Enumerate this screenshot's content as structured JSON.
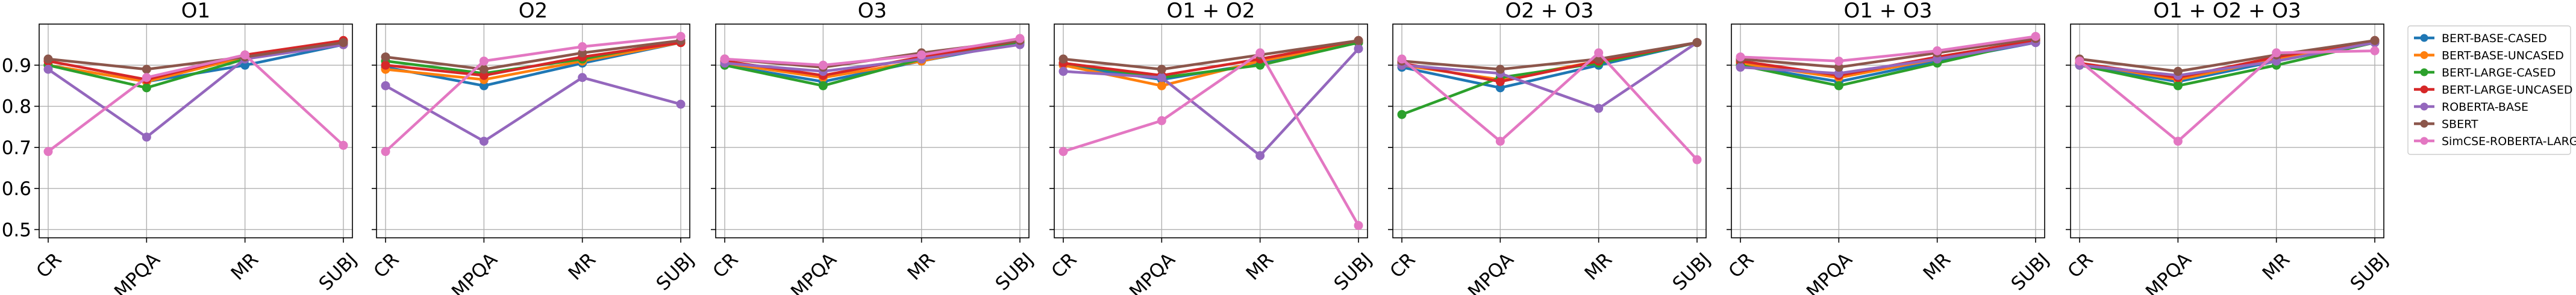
{
  "chart_data": [
    {
      "type": "line",
      "title": "O1",
      "categories": [
        "CR",
        "MPQA",
        "MR",
        "SUBJ"
      ],
      "ylim": [
        0.48,
        1.0
      ],
      "yticks": [
        0.5,
        0.6,
        0.7,
        0.8,
        0.9
      ],
      "ytick_labels": [
        "0.5",
        "0.6",
        "0.7",
        "0.8",
        "0.9"
      ],
      "grid": true,
      "series": [
        {
          "name": "BERT-BASE-CASED",
          "values": [
            0.9,
            0.86,
            0.9,
            0.95
          ]
        },
        {
          "name": "BERT-BASE-UNCASED",
          "values": [
            0.9,
            0.86,
            0.92,
            0.95
          ]
        },
        {
          "name": "BERT-LARGE-CASED",
          "values": [
            0.9,
            0.845,
            0.915,
            0.955
          ]
        },
        {
          "name": "BERT-LARGE-UNCASED",
          "values": [
            0.91,
            0.865,
            0.925,
            0.96
          ]
        },
        {
          "name": "ROBERTA-BASE",
          "values": [
            0.89,
            0.725,
            0.915,
            0.95
          ]
        },
        {
          "name": "SBERT",
          "values": [
            0.915,
            0.89,
            0.92,
            0.955
          ]
        },
        {
          "name": "SimCSE-ROBERTA-LARGE",
          "values": [
            0.69,
            0.87,
            0.925,
            0.705
          ]
        }
      ]
    },
    {
      "type": "line",
      "title": "O2",
      "categories": [
        "CR",
        "MPQA",
        "MR",
        "SUBJ"
      ],
      "ylim": [
        0.48,
        1.0
      ],
      "yticks": [
        0.5,
        0.6,
        0.7,
        0.8,
        0.9
      ],
      "grid": true,
      "series": [
        {
          "name": "BERT-BASE-CASED",
          "values": [
            0.895,
            0.85,
            0.905,
            0.955
          ]
        },
        {
          "name": "BERT-BASE-UNCASED",
          "values": [
            0.89,
            0.865,
            0.91,
            0.955
          ]
        },
        {
          "name": "BERT-LARGE-CASED",
          "values": [
            0.91,
            0.88,
            0.915,
            0.96
          ]
        },
        {
          "name": "BERT-LARGE-UNCASED",
          "values": [
            0.9,
            0.875,
            0.92,
            0.955
          ]
        },
        {
          "name": "ROBERTA-BASE",
          "values": [
            0.85,
            0.715,
            0.87,
            0.805
          ]
        },
        {
          "name": "SBERT",
          "values": [
            0.92,
            0.89,
            0.93,
            0.96
          ]
        },
        {
          "name": "SimCSE-ROBERTA-LARGE",
          "values": [
            0.69,
            0.91,
            0.945,
            0.97
          ]
        }
      ]
    },
    {
      "type": "line",
      "title": "O3",
      "categories": [
        "CR",
        "MPQA",
        "MR",
        "SUBJ"
      ],
      "ylim": [
        0.48,
        1.0
      ],
      "yticks": [
        0.5,
        0.6,
        0.7,
        0.8,
        0.9
      ],
      "grid": true,
      "series": [
        {
          "name": "BERT-BASE-CASED",
          "values": [
            0.9,
            0.86,
            0.91,
            0.955
          ]
        },
        {
          "name": "BERT-BASE-UNCASED",
          "values": [
            0.905,
            0.87,
            0.91,
            0.96
          ]
        },
        {
          "name": "BERT-LARGE-CASED",
          "values": [
            0.9,
            0.85,
            0.915,
            0.955
          ]
        },
        {
          "name": "BERT-LARGE-UNCASED",
          "values": [
            0.91,
            0.875,
            0.92,
            0.96
          ]
        },
        {
          "name": "ROBERTA-BASE",
          "values": [
            0.905,
            0.885,
            0.915,
            0.95
          ]
        },
        {
          "name": "SBERT",
          "values": [
            0.915,
            0.895,
            0.93,
            0.96
          ]
        },
        {
          "name": "SimCSE-ROBERTA-LARGE",
          "values": [
            0.915,
            0.9,
            0.925,
            0.965
          ]
        }
      ]
    },
    {
      "type": "line",
      "title": "O1 + O2",
      "categories": [
        "CR",
        "MPQA",
        "MR",
        "SUBJ"
      ],
      "ylim": [
        0.48,
        1.0
      ],
      "yticks": [
        0.5,
        0.6,
        0.7,
        0.8,
        0.9
      ],
      "grid": true,
      "series": [
        {
          "name": "BERT-BASE-CASED",
          "values": [
            0.9,
            0.865,
            0.905,
            0.955
          ]
        },
        {
          "name": "BERT-BASE-UNCASED",
          "values": [
            0.9,
            0.85,
            0.91,
            0.955
          ]
        },
        {
          "name": "BERT-LARGE-CASED",
          "values": [
            0.905,
            0.87,
            0.9,
            0.955
          ]
        },
        {
          "name": "BERT-LARGE-UNCASED",
          "values": [
            0.905,
            0.875,
            0.915,
            0.96
          ]
        },
        {
          "name": "ROBERTA-BASE",
          "values": [
            0.885,
            0.87,
            0.68,
            0.94
          ]
        },
        {
          "name": "SBERT",
          "values": [
            0.915,
            0.89,
            0.925,
            0.96
          ]
        },
        {
          "name": "SimCSE-ROBERTA-LARGE",
          "values": [
            0.69,
            0.765,
            0.93,
            0.51
          ]
        }
      ]
    },
    {
      "type": "line",
      "title": "O2 + O3",
      "categories": [
        "CR",
        "MPQA",
        "MR",
        "SUBJ"
      ],
      "ylim": [
        0.48,
        1.0
      ],
      "yticks": [
        0.5,
        0.6,
        0.7,
        0.8,
        0.9
      ],
      "grid": true,
      "series": [
        {
          "name": "BERT-BASE-CASED",
          "values": [
            0.895,
            0.845,
            0.9,
            0.955
          ]
        },
        {
          "name": "BERT-BASE-UNCASED",
          "values": [
            0.9,
            0.865,
            0.91,
            0.955
          ]
        },
        {
          "name": "BERT-LARGE-CASED",
          "values": [
            0.78,
            0.87,
            0.905,
            0.955
          ]
        },
        {
          "name": "BERT-LARGE-UNCASED",
          "values": [
            0.905,
            0.86,
            0.91,
            0.955
          ]
        },
        {
          "name": "ROBERTA-BASE",
          "values": [
            0.9,
            0.88,
            0.795,
            0.955
          ]
        },
        {
          "name": "SBERT",
          "values": [
            0.91,
            0.89,
            0.915,
            0.955
          ]
        },
        {
          "name": "SimCSE-ROBERTA-LARGE",
          "values": [
            0.915,
            0.715,
            0.93,
            0.67
          ]
        }
      ]
    },
    {
      "type": "line",
      "title": "O1 + O3",
      "categories": [
        "CR",
        "MPQA",
        "MR",
        "SUBJ"
      ],
      "ylim": [
        0.48,
        1.0
      ],
      "yticks": [
        0.5,
        0.6,
        0.7,
        0.8,
        0.9
      ],
      "grid": true,
      "series": [
        {
          "name": "BERT-BASE-CASED",
          "values": [
            0.9,
            0.86,
            0.91,
            0.955
          ]
        },
        {
          "name": "BERT-BASE-UNCASED",
          "values": [
            0.905,
            0.87,
            0.915,
            0.96
          ]
        },
        {
          "name": "BERT-LARGE-CASED",
          "values": [
            0.9,
            0.85,
            0.905,
            0.96
          ]
        },
        {
          "name": "BERT-LARGE-UNCASED",
          "values": [
            0.91,
            0.875,
            0.92,
            0.96
          ]
        },
        {
          "name": "ROBERTA-BASE",
          "values": [
            0.895,
            0.88,
            0.915,
            0.955
          ]
        },
        {
          "name": "SBERT",
          "values": [
            0.915,
            0.895,
            0.93,
            0.965
          ]
        },
        {
          "name": "SimCSE-ROBERTA-LARGE",
          "values": [
            0.92,
            0.91,
            0.935,
            0.97
          ]
        }
      ]
    },
    {
      "type": "line",
      "title": "O1 + O2 + O3",
      "categories": [
        "CR",
        "MPQA",
        "MR",
        "SUBJ"
      ],
      "ylim": [
        0.48,
        1.0
      ],
      "yticks": [
        0.5,
        0.6,
        0.7,
        0.8,
        0.9
      ],
      "grid": true,
      "series": [
        {
          "name": "BERT-BASE-CASED",
          "values": [
            0.9,
            0.86,
            0.91,
            0.955
          ]
        },
        {
          "name": "BERT-BASE-UNCASED",
          "values": [
            0.905,
            0.865,
            0.915,
            0.955
          ]
        },
        {
          "name": "BERT-LARGE-CASED",
          "values": [
            0.9,
            0.85,
            0.9,
            0.955
          ]
        },
        {
          "name": "BERT-LARGE-UNCASED",
          "values": [
            0.905,
            0.87,
            0.92,
            0.96
          ]
        },
        {
          "name": "ROBERTA-BASE",
          "values": [
            0.9,
            0.875,
            0.91,
            0.955
          ]
        },
        {
          "name": "SBERT",
          "values": [
            0.915,
            0.885,
            0.925,
            0.96
          ]
        },
        {
          "name": "SimCSE-ROBERTA-LARGE",
          "values": [
            0.91,
            0.715,
            0.93,
            0.935
          ]
        }
      ]
    }
  ],
  "legend": {
    "position": "right",
    "entries": [
      {
        "label": "BERT-BASE-CASED",
        "color": "#1f77b4"
      },
      {
        "label": "BERT-BASE-UNCASED",
        "color": "#ff7f0e"
      },
      {
        "label": "BERT-LARGE-CASED",
        "color": "#2ca02c"
      },
      {
        "label": "BERT-LARGE-UNCASED",
        "color": "#d62728"
      },
      {
        "label": "ROBERTA-BASE",
        "color": "#9467bd"
      },
      {
        "label": "SBERT",
        "color": "#8c564b"
      },
      {
        "label": "SimCSE-ROBERTA-LARGE",
        "color": "#e377c2"
      }
    ]
  }
}
